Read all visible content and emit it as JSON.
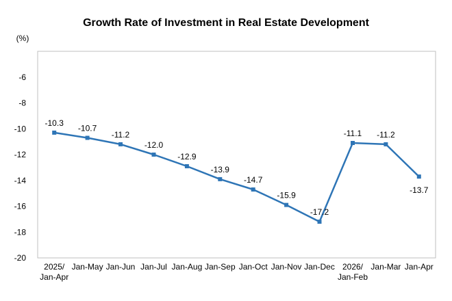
{
  "chart_data": {
    "type": "line",
    "title": "Growth Rate of Investment in Real Estate Development",
    "unit_label": "(%)",
    "categories": [
      "2025/\nJan-Apr",
      "Jan-May",
      "Jan-Jun",
      "Jan-Jul",
      "Jan-Aug",
      "Jan-Sep",
      "Jan-Oct",
      "Jan-Nov",
      "Jan-Dec",
      "2026/\nJan-Feb",
      "Jan-Mar",
      "Jan-Apr"
    ],
    "series": [
      {
        "values": [
          -10.3,
          -10.7,
          -11.2,
          -12.0,
          -12.9,
          -13.9,
          -14.7,
          -15.9,
          -17.2,
          -11.1,
          -11.2,
          -13.7
        ],
        "labels": [
          "-10.3",
          "-10.7",
          "-11.2",
          "-12.0",
          "-12.9",
          "-13.9",
          "-14.7",
          "-15.9",
          "-17.2",
          "-11.1",
          "-11.2",
          "-13.7"
        ],
        "color": "#2E75B6"
      }
    ],
    "ylim": [
      -20,
      -4
    ],
    "yticks": [
      -6,
      -8,
      -10,
      -12,
      -14,
      -16,
      -18,
      -20
    ],
    "grid": false,
    "legend": "none"
  }
}
